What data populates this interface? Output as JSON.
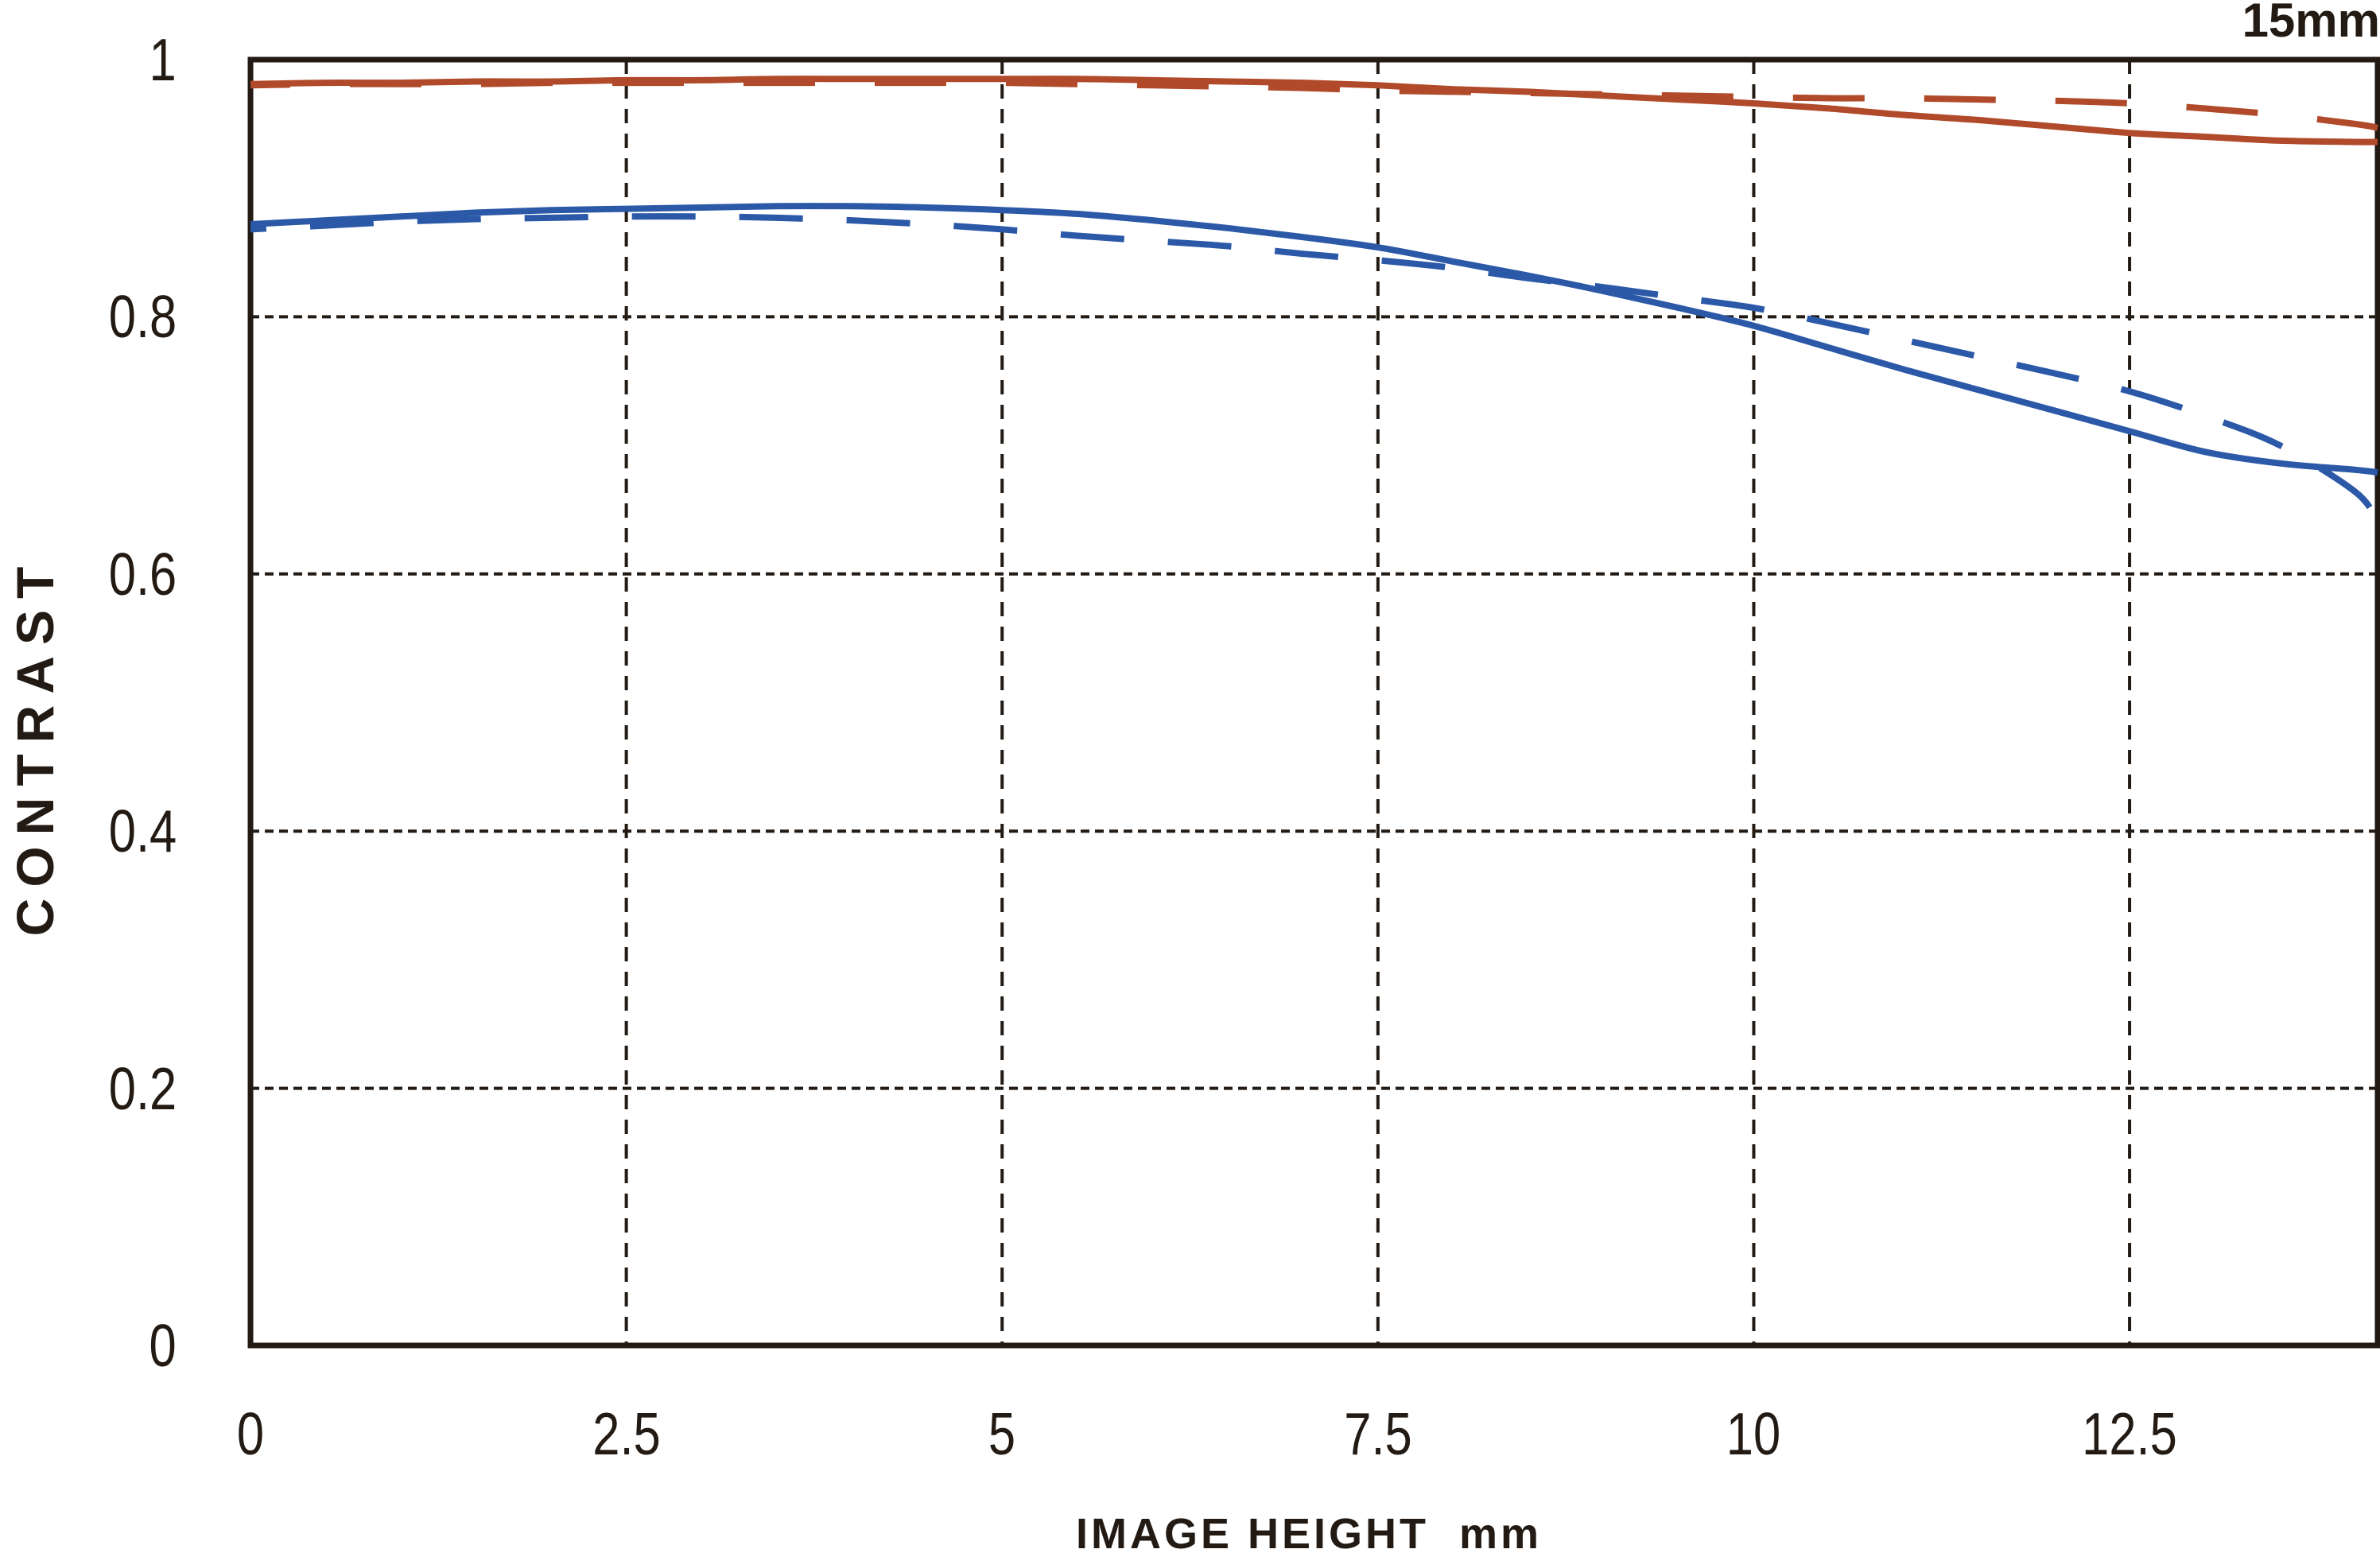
{
  "chart_data": {
    "type": "line",
    "title": "15mm",
    "xlabel": "IMAGE HEIGHT  mm",
    "ylabel": "CONTRAST",
    "xlim": [
      0,
      14.15
    ],
    "ylim": [
      0,
      1
    ],
    "axis_color": "#221a13",
    "grid": {
      "vertical_style": "dashed",
      "horizontal_style": "dotted",
      "shown": true
    },
    "legend_position": "none",
    "xticks": [
      {
        "value": 0,
        "label": "0"
      },
      {
        "value": 2.5,
        "label": "2.5"
      },
      {
        "value": 5,
        "label": "5"
      },
      {
        "value": 7.5,
        "label": "7.5"
      },
      {
        "value": 10,
        "label": "10"
      },
      {
        "value": 12.5,
        "label": "12.5"
      }
    ],
    "yticks": [
      {
        "value": 0,
        "label": "0"
      },
      {
        "value": 0.2,
        "label": "0.2"
      },
      {
        "value": 0.4,
        "label": "0.4"
      },
      {
        "value": 0.6,
        "label": "0.6"
      },
      {
        "value": 0.8,
        "label": "0.8"
      },
      {
        "value": 1,
        "label": "1"
      }
    ],
    "x": [
      0,
      0.5,
      1,
      1.5,
      2,
      2.5,
      3,
      3.5,
      4,
      4.5,
      5,
      5.5,
      6,
      6.5,
      7,
      7.5,
      8,
      8.5,
      9,
      9.5,
      10,
      10.5,
      11,
      11.5,
      12,
      12.5,
      13,
      13.5,
      14,
      14.15
    ],
    "series": [
      {
        "name": "red-solid",
        "color": "#b04a2a",
        "line_style": "solid",
        "dash": "",
        "values": [
          0.981,
          0.982,
          0.982,
          0.983,
          0.983,
          0.984,
          0.984,
          0.985,
          0.985,
          0.985,
          0.985,
          0.985,
          0.984,
          0.983,
          0.982,
          0.98,
          0.977,
          0.975,
          0.972,
          0.969,
          0.966,
          0.962,
          0.957,
          0.953,
          0.948,
          0.943,
          0.94,
          0.937,
          0.936,
          0.936
        ]
      },
      {
        "name": "red-dashed",
        "color": "#b04a2a",
        "line_style": "dashed",
        "dash": "90 75",
        "values": [
          0.98,
          0.981,
          0.981,
          0.981,
          0.982,
          0.982,
          0.982,
          0.982,
          0.982,
          0.982,
          0.982,
          0.981,
          0.98,
          0.979,
          0.978,
          0.976,
          0.975,
          0.974,
          0.973,
          0.972,
          0.971,
          0.97,
          0.97,
          0.969,
          0.968,
          0.966,
          0.962,
          0.957,
          0.95,
          0.947
        ]
      },
      {
        "name": "blue-solid",
        "color": "#2b59a7",
        "line_style": "solid",
        "dash": "",
        "values": [
          0.872,
          0.875,
          0.878,
          0.881,
          0.883,
          0.884,
          0.885,
          0.886,
          0.886,
          0.885,
          0.883,
          0.88,
          0.875,
          0.869,
          0.862,
          0.854,
          0.843,
          0.832,
          0.82,
          0.807,
          0.793,
          0.776,
          0.759,
          0.743,
          0.727,
          0.711,
          0.695,
          0.686,
          0.681,
          0.679
        ]
      },
      {
        "name": "blue-dashed",
        "color": "#2b59a7",
        "line_style": "dashed",
        "dash": "80 55",
        "values": [
          0.868,
          0.871,
          0.874,
          0.876,
          0.877,
          0.878,
          0.878,
          0.877,
          0.875,
          0.872,
          0.868,
          0.863,
          0.859,
          0.855,
          0.849,
          0.844,
          0.838,
          0.83,
          0.823,
          0.815,
          0.807,
          0.795,
          0.782,
          0.769,
          0.756,
          0.742,
          0.723,
          0.7,
          0.664,
          0.641
        ]
      }
    ]
  }
}
